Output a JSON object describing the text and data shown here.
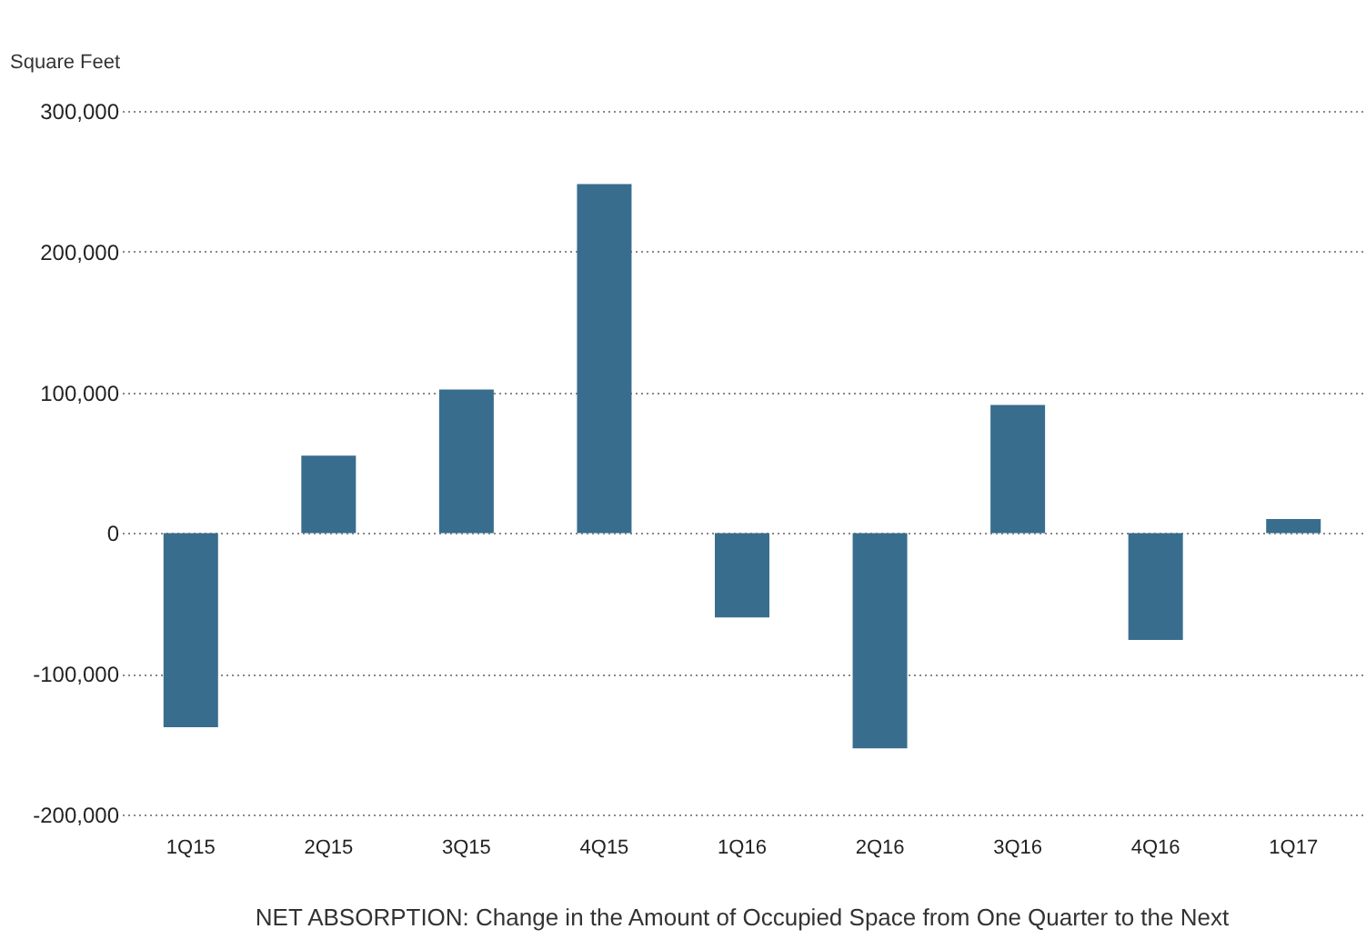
{
  "chart_data": {
    "type": "bar",
    "ylabel": "Square Feet",
    "title": "NET ABSORPTION: Change in the Amount of Occupied Space from One Quarter to the Next",
    "categories": [
      "1Q15",
      "2Q15",
      "3Q15",
      "4Q15",
      "1Q16",
      "2Q16",
      "3Q16",
      "4Q16",
      "1Q17"
    ],
    "values": [
      -138000,
      55000,
      102000,
      248000,
      -60000,
      -153000,
      91000,
      -76000,
      10000
    ],
    "color": "#386d8e",
    "ylim": [
      -200000,
      300000
    ],
    "yticks": [
      {
        "value": -200000,
        "label": "-200,000"
      },
      {
        "value": -100000,
        "label": "-100,000"
      },
      0,
      {
        "value": 100000,
        "label": "100,000"
      },
      {
        "value": 200000,
        "label": "200,000"
      },
      {
        "value": 300000,
        "label": "300,000"
      }
    ],
    "grid": "y"
  }
}
